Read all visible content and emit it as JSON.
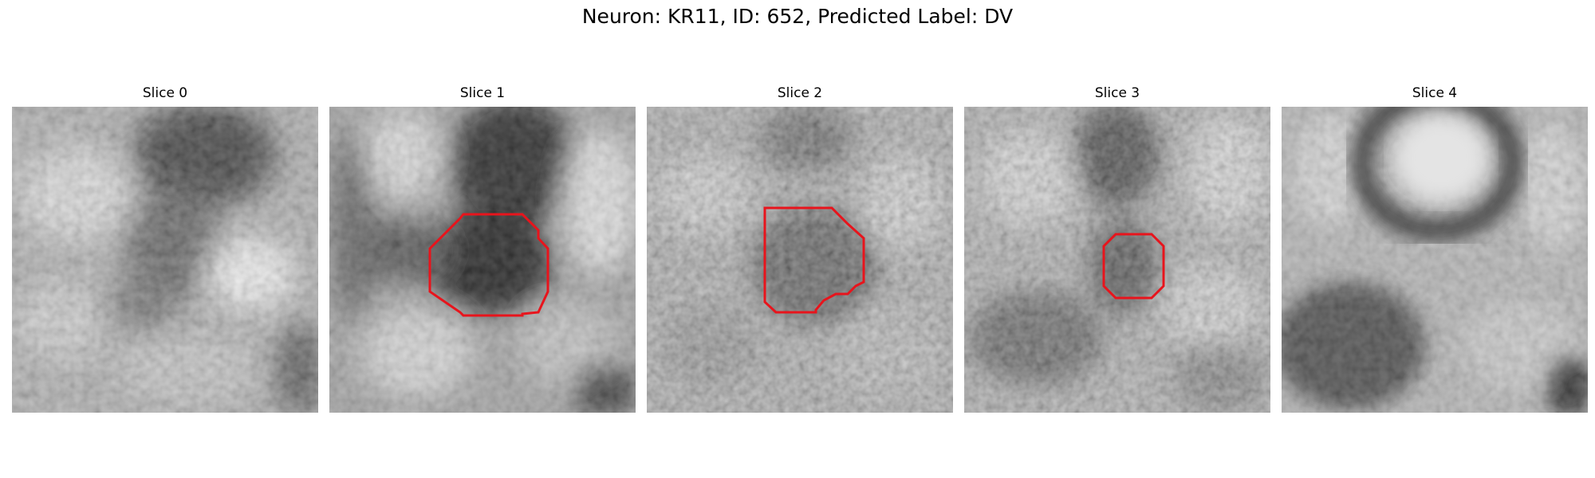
{
  "figure": {
    "suptitle": "Neuron: KR11, ID: 652, Predicted Label: DV"
  },
  "panels": [
    {
      "title": "Slice 0"
    },
    {
      "title": "Slice 1"
    },
    {
      "title": "Slice 2"
    },
    {
      "title": "Slice 3"
    },
    {
      "title": "Slice 4"
    }
  ],
  "colors": {
    "contour": "#e8141c",
    "background": "#ffffff"
  }
}
